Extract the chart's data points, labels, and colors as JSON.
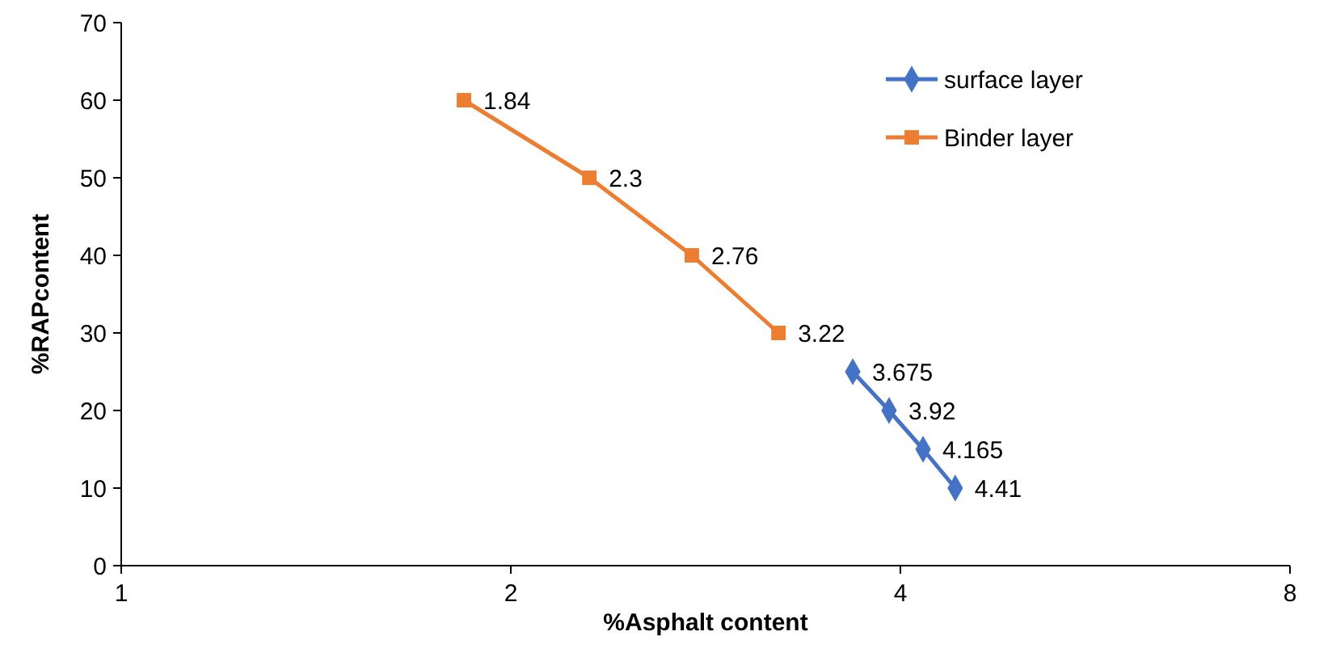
{
  "chart_data": {
    "type": "line",
    "xlabel": "%Asphalt content",
    "ylabel": "%RAPcontent",
    "log": "x",
    "xlim": [
      1,
      8
    ],
    "xticks": [
      1,
      2,
      4,
      8
    ],
    "ylim": [
      0,
      70
    ],
    "yticks": [
      0,
      10,
      20,
      30,
      40,
      50,
      60,
      70
    ],
    "grid": false,
    "legend": "top right",
    "line_style": "solid",
    "series": [
      {
        "name": "surface layer",
        "color": "#4472c4",
        "marker": "diamond",
        "x": [
          3.675,
          3.92,
          4.165,
          4.41
        ],
        "values": [
          25,
          20,
          15,
          10
        ]
      },
      {
        "name": "Binder layer",
        "color": "#ed7d31",
        "marker": "square",
        "x": [
          1.84,
          2.3,
          2.76,
          3.22
        ],
        "values": [
          60,
          50,
          40,
          30
        ]
      }
    ],
    "annotations": [
      {
        "text": "3.675",
        "x": 3.675,
        "y": 25
      },
      {
        "text": "3.92",
        "x": 3.92,
        "y": 20
      },
      {
        "text": "4.165",
        "x": 4.165,
        "y": 15
      },
      {
        "text": "4.41",
        "x": 4.41,
        "y": 10
      },
      {
        "text": "1.84",
        "x": 1.84,
        "y": 60
      },
      {
        "text": "2.3",
        "x": 2.3,
        "y": 50
      },
      {
        "text": "2.76",
        "x": 2.76,
        "y": 40
      },
      {
        "text": "3.22",
        "x": 3.22,
        "y": 30
      }
    ]
  }
}
